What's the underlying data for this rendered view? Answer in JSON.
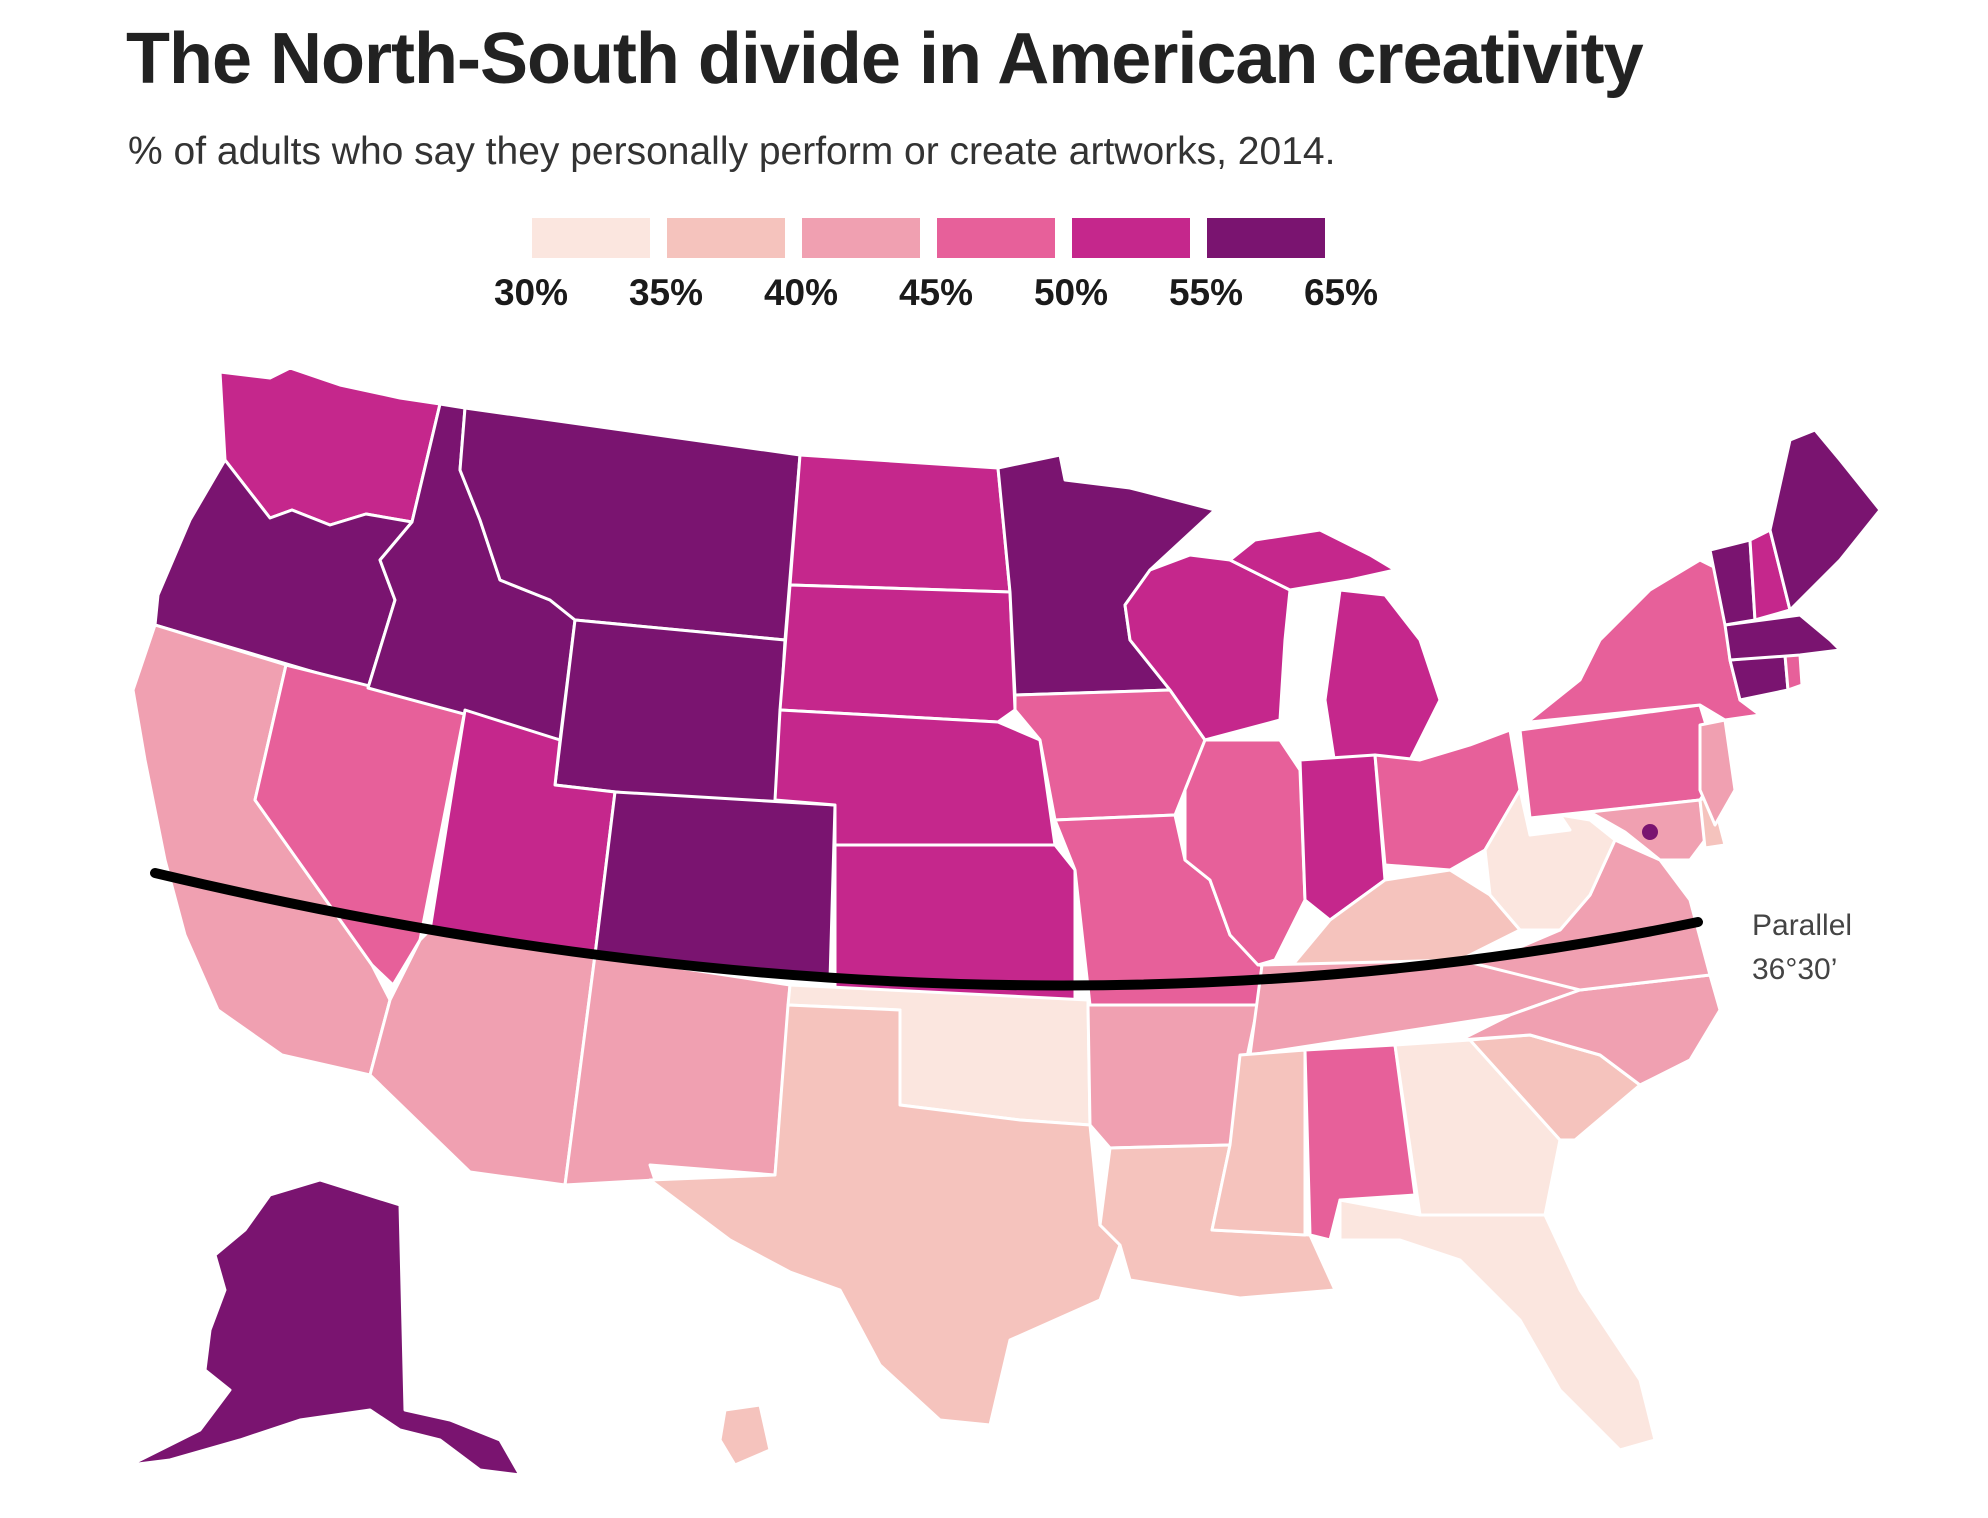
{
  "title": "The North-South divide in American creativity",
  "subtitle": "% of adults who say they personally perform or create artworks, 2014.",
  "legend": {
    "colors": [
      "#fbe6df",
      "#f5c3bd",
      "#f0a0b1",
      "#e7609a",
      "#c5278c",
      "#7a1470"
    ],
    "labels": [
      "30%",
      "35%",
      "40%",
      "45%",
      "50%",
      "55%",
      "65%"
    ]
  },
  "parallel_label": {
    "line1": "Parallel",
    "line2": "36°30’"
  },
  "map_data": {
    "legend_bins": [
      {
        "min": 30,
        "max": 35,
        "color": "#fbe6df"
      },
      {
        "min": 35,
        "max": 40,
        "color": "#f5c3bd"
      },
      {
        "min": 40,
        "max": 45,
        "color": "#f0a0b1"
      },
      {
        "min": 45,
        "max": 50,
        "color": "#e7609a"
      },
      {
        "min": 50,
        "max": 55,
        "color": "#c5278c"
      },
      {
        "min": 55,
        "max": 65,
        "color": "#7a1470"
      }
    ],
    "states": [
      {
        "name": "Washington",
        "bin": 4
      },
      {
        "name": "Oregon",
        "bin": 5
      },
      {
        "name": "Idaho",
        "bin": 5
      },
      {
        "name": "Montana",
        "bin": 5
      },
      {
        "name": "Wyoming",
        "bin": 5
      },
      {
        "name": "Colorado",
        "bin": 5
      },
      {
        "name": "Minnesota",
        "bin": 5
      },
      {
        "name": "Alaska",
        "bin": 5
      },
      {
        "name": "Maine",
        "bin": 5
      },
      {
        "name": "Vermont",
        "bin": 5
      },
      {
        "name": "Massachusetts",
        "bin": 5
      },
      {
        "name": "Connecticut",
        "bin": 5
      },
      {
        "name": "District of Columbia",
        "bin": 5
      },
      {
        "name": "North Dakota",
        "bin": 4
      },
      {
        "name": "South Dakota",
        "bin": 4
      },
      {
        "name": "Nebraska",
        "bin": 4
      },
      {
        "name": "Kansas",
        "bin": 4
      },
      {
        "name": "Utah",
        "bin": 4
      },
      {
        "name": "Wisconsin",
        "bin": 4
      },
      {
        "name": "Michigan",
        "bin": 4
      },
      {
        "name": "Indiana",
        "bin": 4
      },
      {
        "name": "New Hampshire",
        "bin": 4
      },
      {
        "name": "Nevada",
        "bin": 3
      },
      {
        "name": "Iowa",
        "bin": 3
      },
      {
        "name": "Missouri",
        "bin": 3
      },
      {
        "name": "Illinois",
        "bin": 3
      },
      {
        "name": "Ohio",
        "bin": 3
      },
      {
        "name": "Pennsylvania",
        "bin": 3
      },
      {
        "name": "New York",
        "bin": 3
      },
      {
        "name": "Alabama",
        "bin": 3
      },
      {
        "name": "Rhode Island",
        "bin": 3
      },
      {
        "name": "California",
        "bin": 2
      },
      {
        "name": "Arizona",
        "bin": 2
      },
      {
        "name": "New Mexico",
        "bin": 2
      },
      {
        "name": "Arkansas",
        "bin": 2
      },
      {
        "name": "Tennessee",
        "bin": 2
      },
      {
        "name": "North Carolina",
        "bin": 2
      },
      {
        "name": "Virginia",
        "bin": 2
      },
      {
        "name": "Maryland",
        "bin": 2
      },
      {
        "name": "New Jersey",
        "bin": 2
      },
      {
        "name": "Delaware",
        "bin": 1
      },
      {
        "name": "Texas",
        "bin": 1
      },
      {
        "name": "Louisiana",
        "bin": 1
      },
      {
        "name": "Mississippi",
        "bin": 1
      },
      {
        "name": "Kentucky",
        "bin": 1
      },
      {
        "name": "South Carolina",
        "bin": 1
      },
      {
        "name": "Hawaii",
        "bin": 1
      },
      {
        "name": "Oklahoma",
        "bin": 0
      },
      {
        "name": "West Virginia",
        "bin": 0
      },
      {
        "name": "Georgia",
        "bin": 0
      },
      {
        "name": "Florida",
        "bin": 0
      }
    ]
  }
}
